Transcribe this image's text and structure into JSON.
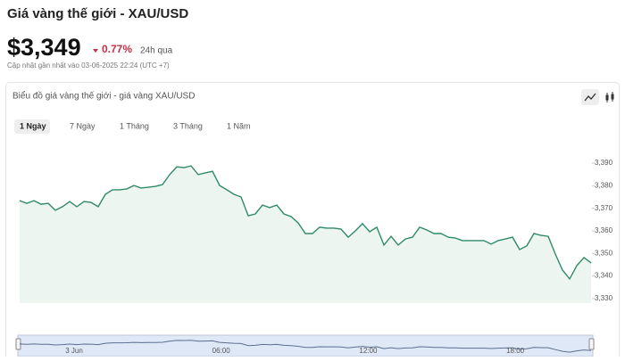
{
  "header": {
    "title": "Giá vàng thế giới - XAU/USD",
    "price": "$3,349",
    "change": "0.77%",
    "period": "24h qua",
    "updated": "Cập nhật gần nhất vào 03-06-2025 22:24 (UTC +7)"
  },
  "chart_data": {
    "type": "area",
    "title": "Biểu đồ giá vàng thế giới - giá vàng XAU/USD",
    "ranges": [
      "1 Ngày",
      "7 Ngày",
      "1 Tháng",
      "3 Tháng",
      "1 Năm"
    ],
    "selected_range": 0,
    "values": [
      3373.4,
      3372.2,
      3373.4,
      3371.8,
      3372.2,
      3369.1,
      3370.7,
      3373.0,
      3370.7,
      3373.0,
      3372.6,
      3370.7,
      3376.2,
      3378.2,
      3378.2,
      3378.6,
      3380.1,
      3379.0,
      3379.3,
      3379.7,
      3380.5,
      3384.9,
      3388.4,
      3388.0,
      3388.8,
      3384.9,
      3385.7,
      3386.4,
      3380.1,
      3378.2,
      3376.2,
      3375.0,
      3366.7,
      3367.5,
      3371.4,
      3370.3,
      3371.4,
      3367.5,
      3366.3,
      3363.5,
      3358.8,
      3358.8,
      3361.6,
      3361.2,
      3361.2,
      3360.8,
      3357.2,
      3360.0,
      3363.2,
      3359.6,
      3361.6,
      3353.7,
      3357.6,
      3353.7,
      3356.4,
      3357.2,
      3361.6,
      3360.4,
      3358.8,
      3358.8,
      3357.2,
      3356.8,
      3355.7,
      3355.7,
      3355.7,
      3355.7,
      3354.1,
      3355.7,
      3356.4,
      3357.2,
      3351.7,
      3353.3,
      3358.8,
      3358.0,
      3357.6,
      3349.7,
      3342.6,
      3338.7,
      3344.6,
      3348.2,
      3345.8
    ],
    "color": "#2f8a68",
    "ylim": [
      3328,
      3399.1
    ],
    "yticks": [
      {
        "value": 3330,
        "label": "3,330"
      },
      {
        "value": 3340,
        "label": "3,340"
      },
      {
        "value": 3350,
        "label": "3,350"
      },
      {
        "value": 3360,
        "label": "3,360"
      },
      {
        "value": 3370,
        "label": "3,370"
      },
      {
        "value": 3380,
        "label": "3,380"
      },
      {
        "value": 3390,
        "label": "3,390"
      }
    ],
    "navigator_labels": [
      "3 Jun",
      "06:00",
      "12:00",
      "18:00"
    ]
  }
}
